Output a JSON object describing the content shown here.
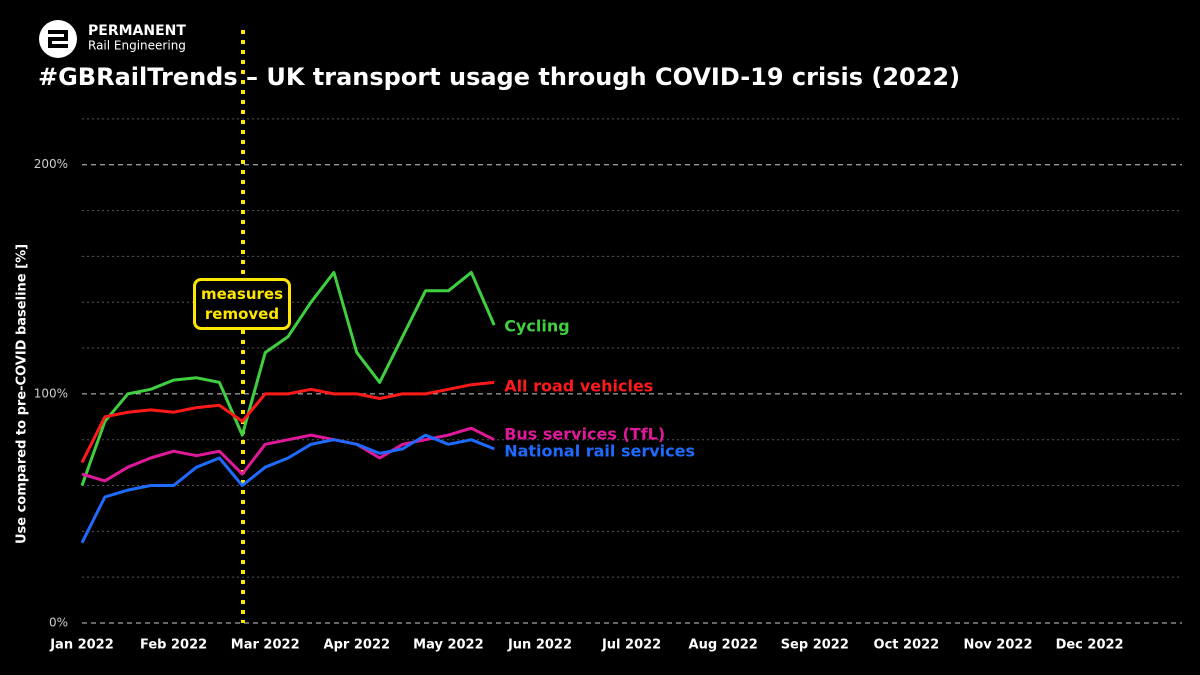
{
  "brand": {
    "name": "PERMANENT",
    "tagline": "Rail Engineering"
  },
  "chart_data": {
    "type": "line",
    "title": "#GBRailTrends – UK transport usage through COVID-19 crisis (2022)",
    "y_label": "Use compared to pre-COVID baseline [%]",
    "annotation": "measures removed",
    "x": [
      "Jan 2022",
      null,
      null,
      null,
      "Feb 2022",
      null,
      null,
      null,
      "Mar 2022",
      null,
      null,
      null,
      "Apr 2022",
      null,
      null,
      null,
      "May 2022",
      null,
      null,
      null,
      "Jun 2022",
      null,
      null,
      null,
      "Jul 2022",
      null,
      null,
      null,
      "Aug 2022",
      null,
      null,
      null,
      "Sep 2022",
      null,
      null,
      null,
      "Oct 2022",
      null,
      null,
      null,
      "Nov 2022",
      null,
      null,
      null,
      "Dec 2022",
      null,
      null,
      null
    ],
    "ylim": [
      0,
      230
    ],
    "yticks": [
      {
        "value": 0,
        "label": "0%"
      },
      {
        "value": 100,
        "label": "100%"
      },
      {
        "value": 200,
        "label": "200%"
      }
    ],
    "minor_yticks": [
      20,
      40,
      60,
      80,
      120,
      140,
      160,
      180,
      220
    ],
    "grid": true,
    "series": [
      {
        "name": "Cycling",
        "color": "#3fcf3f",
        "values": [
          60,
          88,
          100,
          102,
          106,
          107,
          105,
          82,
          118,
          125,
          140,
          153,
          118,
          105,
          125,
          145,
          145,
          153,
          130,
          null,
          null,
          null,
          null,
          null,
          null,
          null,
          null,
          null,
          null,
          null,
          null,
          null,
          null,
          null,
          null,
          null,
          null,
          null,
          null,
          null,
          null,
          null,
          null,
          null,
          null,
          null,
          null,
          null
        ]
      },
      {
        "name": "All road vehicles",
        "color": "#ff1a1a",
        "values": [
          70,
          90,
          92,
          93,
          92,
          94,
          95,
          88,
          100,
          100,
          102,
          100,
          100,
          98,
          100,
          100,
          102,
          104,
          105,
          null,
          null,
          null,
          null,
          null,
          null,
          null,
          null,
          null,
          null,
          null,
          null,
          null,
          null,
          null,
          null,
          null,
          null,
          null,
          null,
          null,
          null,
          null,
          null,
          null,
          null,
          null,
          null,
          null
        ]
      },
      {
        "name": "Bus services (TfL)",
        "color": "#e0189a",
        "values": [
          65,
          62,
          68,
          72,
          75,
          73,
          75,
          65,
          78,
          80,
          82,
          80,
          78,
          72,
          78,
          80,
          82,
          85,
          80,
          null,
          null,
          null,
          null,
          null,
          null,
          null,
          null,
          null,
          null,
          null,
          null,
          null,
          null,
          null,
          null,
          null,
          null,
          null,
          null,
          null,
          null,
          null,
          null,
          null,
          null,
          null,
          null,
          null
        ]
      },
      {
        "name": "National rail services",
        "color": "#1f6bff",
        "values": [
          35,
          55,
          58,
          60,
          60,
          68,
          72,
          60,
          68,
          72,
          78,
          80,
          78,
          74,
          76,
          82,
          78,
          80,
          76,
          null,
          null,
          null,
          null,
          null,
          null,
          null,
          null,
          null,
          null,
          null,
          null,
          null,
          null,
          null,
          null,
          null,
          null,
          null,
          null,
          null,
          null,
          null,
          null,
          null,
          null,
          null,
          null,
          null
        ]
      }
    ]
  }
}
